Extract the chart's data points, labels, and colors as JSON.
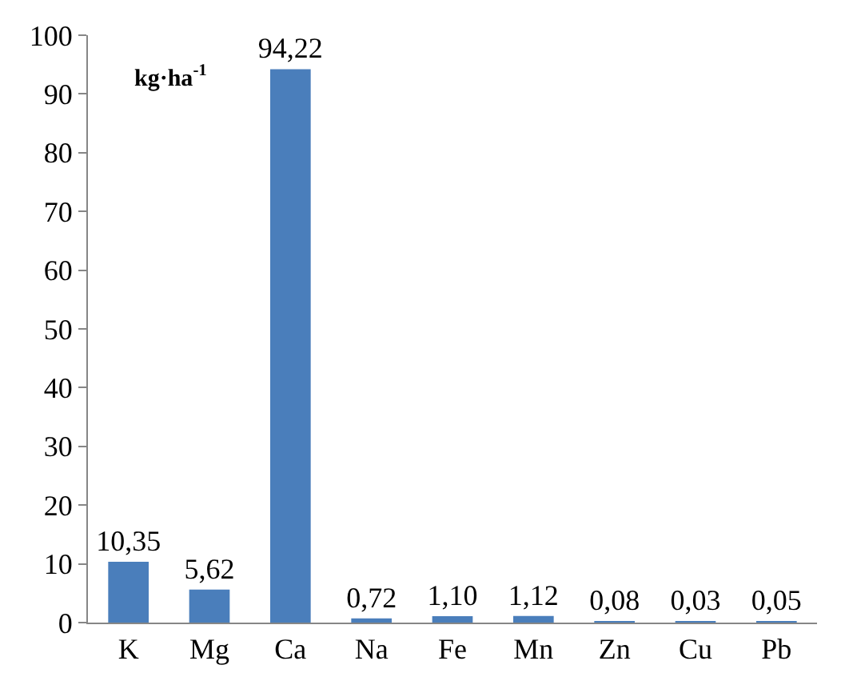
{
  "chart_data": {
    "type": "bar",
    "categories": [
      "K",
      "Mg",
      "Ca",
      "Na",
      "Fe",
      "Mn",
      "Zn",
      "Cu",
      "Pb"
    ],
    "values": [
      10.35,
      5.62,
      94.22,
      0.72,
      1.1,
      1.12,
      0.08,
      0.03,
      0.05
    ],
    "value_labels": [
      "10,35",
      "5,62",
      "94,22",
      "0,72",
      "1,10",
      "1,12",
      "0,08",
      "0,03",
      "0,05"
    ],
    "color": "#4a7ebb",
    "ylim": [
      0,
      100
    ],
    "yticks": [
      0,
      10,
      20,
      30,
      40,
      50,
      60,
      70,
      80,
      90,
      100
    ],
    "annotations": [
      "kg·ha$^{-1}$"
    ]
  }
}
